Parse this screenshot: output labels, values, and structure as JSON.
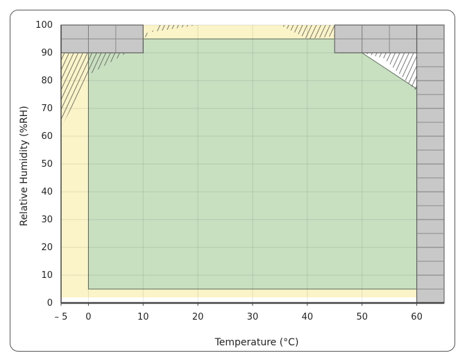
{
  "chart_data": {
    "type": "area",
    "title": "",
    "xlabel": "Temperature (°C)",
    "ylabel": "Relative Humidity (%RH)",
    "xlim": [
      -5,
      65
    ],
    "ylim": [
      0,
      100
    ],
    "x_tick_labels": [
      "– 5",
      "0",
      "10",
      "20",
      "30",
      "40",
      "50",
      "60"
    ],
    "x_ticks": [
      -5,
      0,
      10,
      20,
      30,
      40,
      50,
      60
    ],
    "y_ticks": [
      0,
      10,
      20,
      30,
      40,
      50,
      60,
      70,
      80,
      90,
      100
    ],
    "grid": true,
    "regions": [
      {
        "kind": "operating",
        "color": "#c8e0c0",
        "points": [
          [
            0,
            5
          ],
          [
            60,
            5
          ],
          [
            60,
            77
          ],
          [
            50,
            90
          ],
          [
            45,
            95
          ],
          [
            10,
            95
          ],
          [
            10,
            90
          ],
          [
            0,
            90
          ]
        ]
      },
      {
        "kind": "storage",
        "color": "#fbf4c8",
        "points": [
          [
            -5,
            2
          ],
          [
            60,
            2
          ],
          [
            60,
            77
          ],
          [
            50,
            90
          ],
          [
            45,
            90
          ],
          [
            45,
            100
          ],
          [
            10,
            100
          ],
          [
            10,
            90
          ],
          [
            -5,
            90
          ]
        ]
      },
      {
        "kind": "excluded",
        "color": "#c8c8c8",
        "points": [
          [
            -5,
            90
          ],
          [
            10,
            90
          ],
          [
            10,
            100
          ],
          [
            -5,
            100
          ]
        ]
      },
      {
        "kind": "excluded",
        "color": "#c8c8c8",
        "points": [
          [
            45,
            90
          ],
          [
            60,
            90
          ],
          [
            60,
            100
          ],
          [
            45,
            100
          ]
        ]
      },
      {
        "kind": "excluded",
        "color": "#c8c8c8",
        "points": [
          [
            60,
            0
          ],
          [
            65,
            0
          ],
          [
            65,
            100
          ],
          [
            60,
            100
          ]
        ]
      }
    ],
    "hatched_regions": [
      {
        "points": [
          [
            -5,
            63
          ],
          [
            -5,
            90
          ],
          [
            0,
            90
          ],
          [
            0,
            82
          ]
        ]
      },
      {
        "points": [
          [
            0,
            82
          ],
          [
            0,
            90
          ],
          [
            7,
            90
          ]
        ]
      },
      {
        "points": [
          [
            10,
            95
          ],
          [
            13,
            100
          ],
          [
            20,
            100
          ],
          [
            10,
            97
          ]
        ]
      },
      {
        "points": [
          [
            35,
            100
          ],
          [
            45,
            100
          ],
          [
            45,
            96
          ],
          [
            40,
            95
          ]
        ]
      },
      {
        "points": [
          [
            50,
            90
          ],
          [
            60,
            90
          ],
          [
            60,
            76
          ],
          [
            54,
            88
          ]
        ]
      }
    ]
  }
}
